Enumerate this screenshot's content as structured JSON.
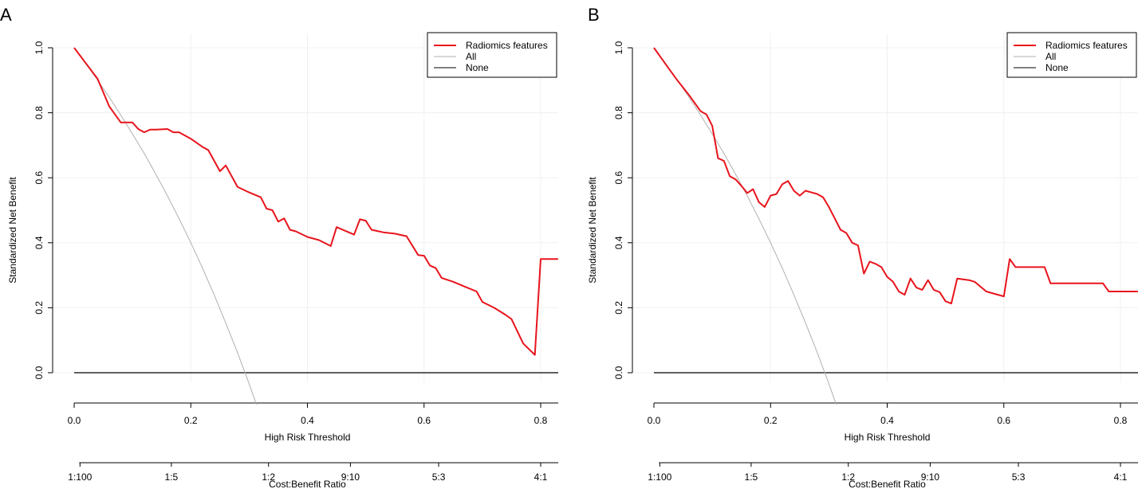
{
  "figure": {
    "panel_labels": [
      "A",
      "B"
    ]
  },
  "chart_data": [
    {
      "type": "line",
      "panel": "A",
      "xlabel": "High Risk Threshold",
      "ylabel": "Standardized Net Benefit",
      "xlim": [
        0,
        0.83
      ],
      "ylim": [
        -0.1,
        1.0
      ],
      "x_ticks": [
        "0.0",
        "0.2",
        "0.4",
        "0.6",
        "0.8"
      ],
      "x_tick_values": [
        0,
        0.2,
        0.4,
        0.6,
        0.8
      ],
      "y_ticks": [
        "0.0",
        "0.2",
        "0.4",
        "0.6",
        "0.8",
        "1.0"
      ],
      "y_tick_values": [
        0,
        0.2,
        0.4,
        0.6,
        0.8,
        1.0
      ],
      "secondary_axis": {
        "title": "Cost:Benefit Ratio",
        "labels": [
          "1:100",
          "1:5",
          "1:2",
          "9:10",
          "5:3",
          "4:1"
        ],
        "positions": [
          0.01,
          0.1667,
          0.3333,
          0.4737,
          0.625,
          0.8
        ]
      },
      "legend": {
        "position": "top-right",
        "entries": [
          "Radiomics features",
          "All",
          "None"
        ],
        "colors": [
          "#e8141c",
          "#b0b0b0",
          "#000000"
        ]
      },
      "prevalence": 0.3,
      "series": [
        {
          "name": "Radiomics features",
          "color": "#e8141c",
          "x": [
            0.0,
            0.04,
            0.06,
            0.08,
            0.1,
            0.11,
            0.12,
            0.13,
            0.14,
            0.16,
            0.17,
            0.18,
            0.2,
            0.22,
            0.23,
            0.25,
            0.26,
            0.28,
            0.3,
            0.32,
            0.33,
            0.34,
            0.35,
            0.36,
            0.37,
            0.38,
            0.4,
            0.42,
            0.44,
            0.45,
            0.48,
            0.49,
            0.5,
            0.51,
            0.52,
            0.53,
            0.55,
            0.57,
            0.59,
            0.6,
            0.61,
            0.62,
            0.63,
            0.65,
            0.67,
            0.69,
            0.7,
            0.72,
            0.74,
            0.75,
            0.77,
            0.79,
            0.8,
            0.83
          ],
          "values": [
            1.0,
            0.905,
            0.82,
            0.77,
            0.77,
            0.75,
            0.74,
            0.748,
            0.748,
            0.75,
            0.74,
            0.74,
            0.72,
            0.695,
            0.685,
            0.62,
            0.638,
            0.572,
            0.555,
            0.54,
            0.505,
            0.5,
            0.465,
            0.475,
            0.44,
            0.435,
            0.418,
            0.408,
            0.39,
            0.448,
            0.425,
            0.472,
            0.468,
            0.44,
            0.436,
            0.432,
            0.428,
            0.42,
            0.362,
            0.36,
            0.33,
            0.322,
            0.292,
            0.28,
            0.265,
            0.25,
            0.218,
            0.2,
            0.178,
            0.165,
            0.09,
            0.055,
            0.35,
            0.35
          ]
        },
        {
          "name": "All",
          "color": "#b0b0b0",
          "x": [
            0.0,
            0.02,
            0.04,
            0.06,
            0.08,
            0.1,
            0.12,
            0.14,
            0.16,
            0.18,
            0.2,
            0.22,
            0.24,
            0.26,
            0.28,
            0.3,
            0.32,
            0.3237
          ],
          "values": [
            1.0,
            0.951,
            0.901,
            0.848,
            0.793,
            0.735,
            0.675,
            0.611,
            0.544,
            0.474,
            0.4,
            0.322,
            0.24,
            0.153,
            0.062,
            -0.034,
            -0.135,
            -0.1
          ]
        },
        {
          "name": "None",
          "color": "#000000",
          "x": [
            0.0,
            0.83
          ],
          "values": [
            0.0,
            0.0
          ]
        }
      ]
    },
    {
      "type": "line",
      "panel": "B",
      "xlabel": "High Risk Threshold",
      "ylabel": "Standardized Net Benefit",
      "xlim": [
        0,
        0.83
      ],
      "ylim": [
        -0.1,
        1.0
      ],
      "x_ticks": [
        "0.0",
        "0.2",
        "0.4",
        "0.6",
        "0.8"
      ],
      "x_tick_values": [
        0,
        0.2,
        0.4,
        0.6,
        0.8
      ],
      "y_ticks": [
        "0.0",
        "0.2",
        "0.4",
        "0.6",
        "0.8",
        "1.0"
      ],
      "y_tick_values": [
        0,
        0.2,
        0.4,
        0.6,
        0.8,
        1.0
      ],
      "secondary_axis": {
        "title": "Cost:Benefit Ratio",
        "labels": [
          "1:100",
          "1:5",
          "1:2",
          "9:10",
          "5:3",
          "4:1"
        ],
        "positions": [
          0.01,
          0.1667,
          0.3333,
          0.4737,
          0.625,
          0.8
        ]
      },
      "legend": {
        "position": "top-right",
        "entries": [
          "Radiomics features",
          "All",
          "None"
        ],
        "colors": [
          "#e8141c",
          "#b0b0b0",
          "#000000"
        ]
      },
      "prevalence": 0.3,
      "series": [
        {
          "name": "Radiomics features",
          "color": "#e8141c",
          "x": [
            0.0,
            0.02,
            0.04,
            0.06,
            0.08,
            0.09,
            0.1,
            0.11,
            0.12,
            0.13,
            0.14,
            0.15,
            0.16,
            0.17,
            0.18,
            0.19,
            0.2,
            0.21,
            0.22,
            0.23,
            0.24,
            0.25,
            0.26,
            0.28,
            0.29,
            0.3,
            0.31,
            0.32,
            0.33,
            0.34,
            0.35,
            0.36,
            0.37,
            0.38,
            0.39,
            0.4,
            0.41,
            0.42,
            0.43,
            0.44,
            0.45,
            0.46,
            0.47,
            0.48,
            0.49,
            0.5,
            0.51,
            0.52,
            0.54,
            0.55,
            0.57,
            0.59,
            0.6,
            0.61,
            0.62,
            0.67,
            0.68,
            0.77,
            0.78,
            0.83
          ],
          "values": [
            1.0,
            0.95,
            0.9,
            0.855,
            0.805,
            0.795,
            0.76,
            0.66,
            0.652,
            0.605,
            0.595,
            0.575,
            0.553,
            0.565,
            0.525,
            0.51,
            0.545,
            0.55,
            0.58,
            0.59,
            0.56,
            0.545,
            0.56,
            0.55,
            0.54,
            0.51,
            0.475,
            0.44,
            0.43,
            0.4,
            0.392,
            0.305,
            0.342,
            0.335,
            0.325,
            0.295,
            0.28,
            0.25,
            0.24,
            0.29,
            0.262,
            0.255,
            0.285,
            0.255,
            0.248,
            0.22,
            0.213,
            0.29,
            0.285,
            0.28,
            0.25,
            0.24,
            0.235,
            0.35,
            0.325,
            0.325,
            0.275,
            0.275,
            0.25,
            0.25
          ]
        },
        {
          "name": "All",
          "color": "#b0b0b0",
          "x": [
            0.0,
            0.02,
            0.04,
            0.06,
            0.08,
            0.1,
            0.12,
            0.14,
            0.16,
            0.18,
            0.2,
            0.22,
            0.24,
            0.26,
            0.28,
            0.3,
            0.32,
            0.3237
          ],
          "values": [
            1.0,
            0.951,
            0.901,
            0.848,
            0.793,
            0.735,
            0.675,
            0.611,
            0.544,
            0.474,
            0.4,
            0.322,
            0.24,
            0.153,
            0.062,
            -0.034,
            -0.135,
            -0.1
          ]
        },
        {
          "name": "None",
          "color": "#000000",
          "x": [
            0.0,
            0.83
          ],
          "values": [
            0.0,
            0.0
          ]
        }
      ]
    }
  ]
}
